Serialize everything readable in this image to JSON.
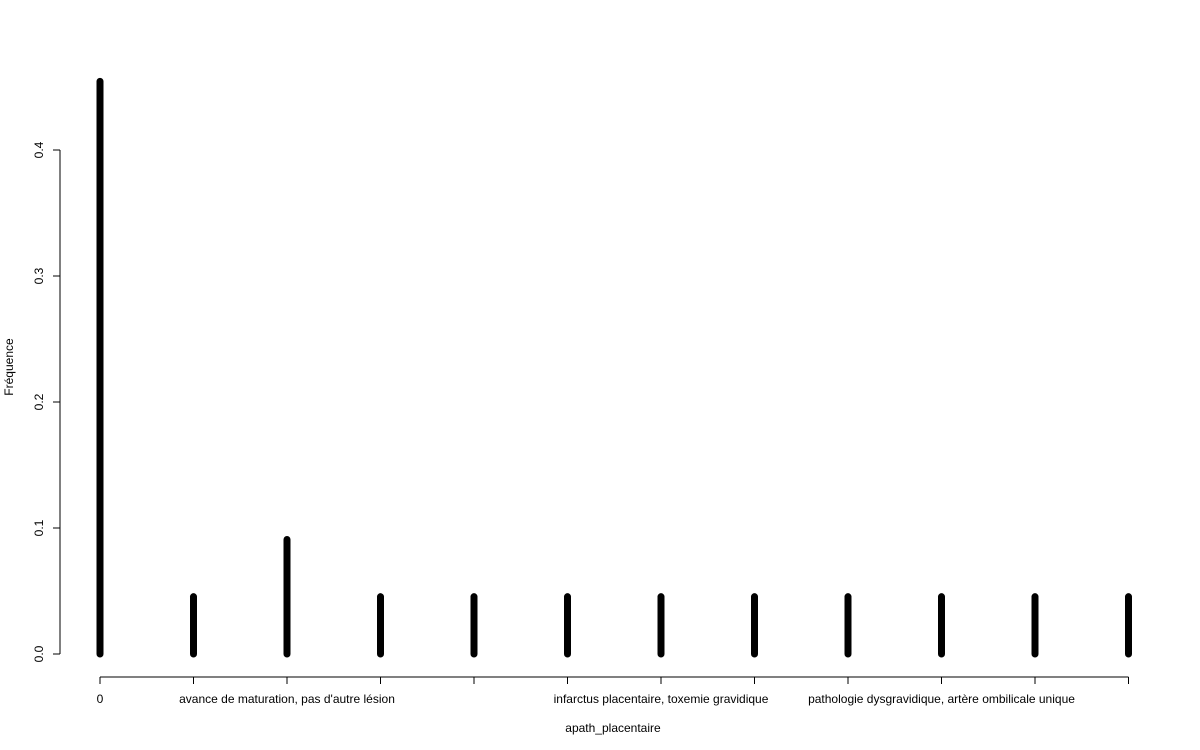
{
  "chart_data": {
    "type": "bar",
    "style": "spike",
    "xlabel": "apath_placentaire",
    "ylabel": "Fréquence",
    "ylim": [
      0,
      0.45
    ],
    "yticks": [
      0.0,
      0.1,
      0.2,
      0.3,
      0.4
    ],
    "ytick_labels": [
      "0.0",
      "0.1",
      "0.2",
      "0.3",
      "0.4"
    ],
    "categories": [
      "0",
      "",
      "",
      "",
      "",
      "",
      "",
      "",
      "",
      "",
      "",
      ""
    ],
    "values": [
      0.4545,
      0.0455,
      0.0909,
      0.0455,
      0.0455,
      0.0455,
      0.0455,
      0.0455,
      0.0455,
      0.0455,
      0.0455,
      0.0455
    ],
    "xtick_labels": [
      {
        "index": 0,
        "text": "0"
      },
      {
        "index": 2,
        "text": "avance de maturation, pas d'autre lésion"
      },
      {
        "index": 6,
        "text": "infarctus placentaire, toxemie gravidique"
      },
      {
        "index": 9,
        "text": "pathologie dysgravidique, artère ombilicale unique"
      }
    ],
    "bar_color": "#000000",
    "grid": false,
    "legend": "none"
  }
}
